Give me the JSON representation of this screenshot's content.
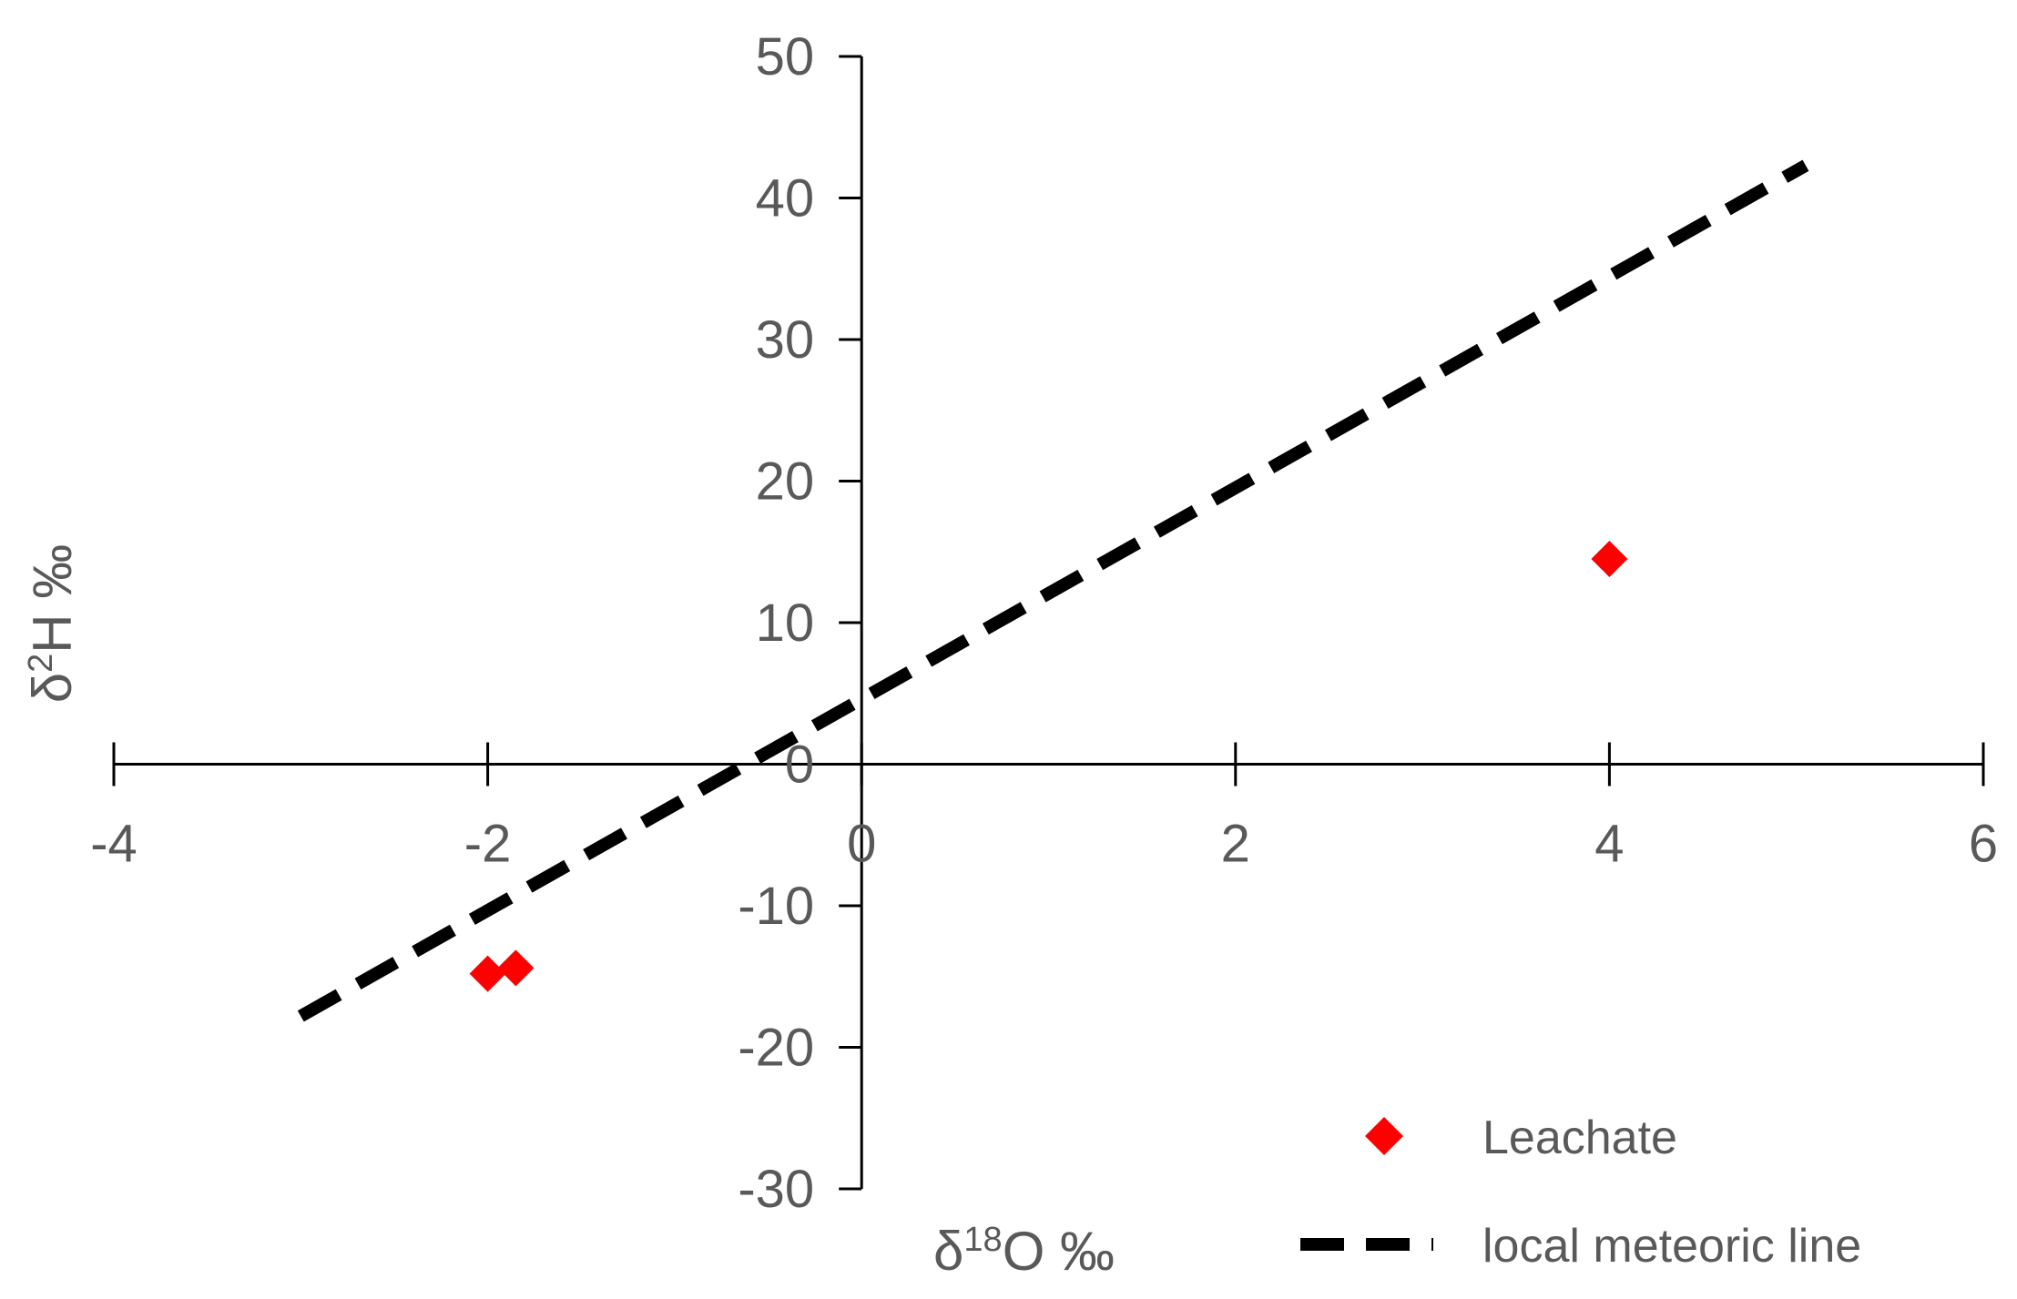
{
  "chart_data": {
    "type": "scatter",
    "title": "",
    "xlabel_main": "δ",
    "xlabel_sup": "18",
    "xlabel_rest": "O ‰",
    "ylabel_main": "δ",
    "ylabel_sup": "2",
    "ylabel_rest": "H ‰",
    "xlim": [
      -4,
      6
    ],
    "ylim": [
      -30,
      50
    ],
    "x_ticks": [
      -4,
      -2,
      0,
      2,
      4,
      6
    ],
    "y_ticks": [
      50,
      40,
      30,
      20,
      10,
      0,
      -10,
      -20,
      -30
    ],
    "x_tick_labels": [
      "-4",
      "-2",
      "0",
      "2",
      "4",
      "6"
    ],
    "y_tick_labels": [
      "50",
      "40",
      "30",
      "20",
      "10",
      "0",
      "-10",
      "-20",
      "-30"
    ],
    "grid": false,
    "legend_position": "bottom-right",
    "series": [
      {
        "name": "Leachate",
        "kind": "scatter",
        "marker": "diamond",
        "color": "#ff0000",
        "points": [
          {
            "x": -2.0,
            "y": -14.8
          },
          {
            "x": -1.85,
            "y": -14.4
          },
          {
            "x": 4.0,
            "y": 14.5
          }
        ]
      },
      {
        "name": "local meteoric line",
        "kind": "line",
        "dash": true,
        "color": "#000000",
        "points": [
          {
            "x": -3.0,
            "y": -17.8
          },
          {
            "x": 5.05,
            "y": 42.3
          }
        ]
      }
    ]
  }
}
